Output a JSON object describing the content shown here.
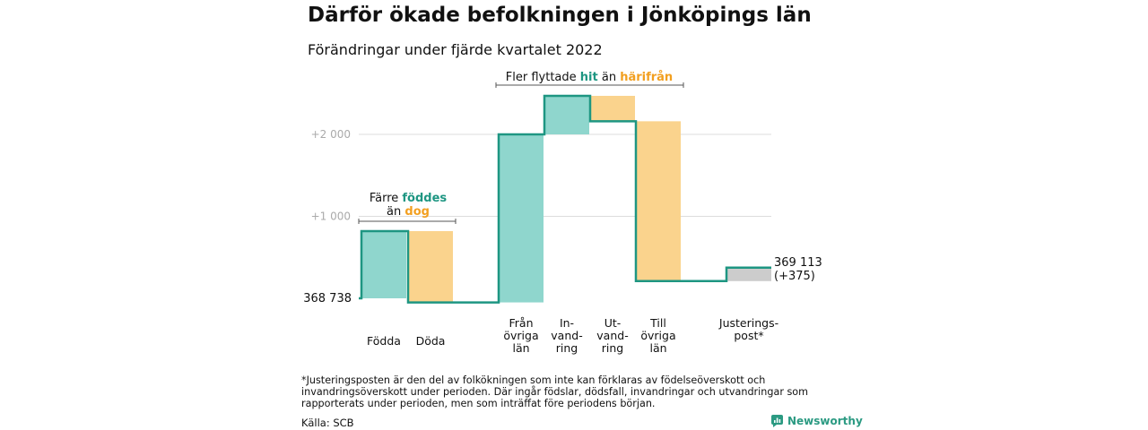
{
  "title": "Därför ökade befolkningen i Jönköpings län",
  "subtitle": "Förändringar under fjärde kvartalet 2022",
  "footnote": "*Justeringsposten är den del av folkökningen som inte kan förklaras av födelseöverskott och invandringsöverskott under perioden. Där ingår födslar, dödsfall, invandringar och utvandringar som rapporterats under perioden, men som inträffat före periodens början.",
  "source": "Källa: SCB",
  "brand": "Newsworthy",
  "colors": {
    "positive": "#8fd6cd",
    "negative": "#fad38d",
    "adjustment": "#cccccc",
    "step_line": "#1e9682",
    "grid": "#dddddd",
    "accent_teal": "#1e9682",
    "accent_orange": "#f29f1f"
  },
  "chart_data": {
    "type": "waterfall",
    "baseline": 0,
    "start_label": "368 738",
    "end_label": "369 113",
    "end_change_label": "(+375)",
    "y_ticks": [
      {
        "value": 2000,
        "label": "+2 000"
      },
      {
        "value": 1000,
        "label": "+1 000"
      }
    ],
    "steps": [
      {
        "category": [
          "Födda"
        ],
        "start": 0,
        "end": 820,
        "kind": "positive"
      },
      {
        "category": [
          "Döda"
        ],
        "start": 820,
        "end": -50,
        "kind": "negative"
      },
      {
        "category": [
          "Från",
          "övriga",
          "län"
        ],
        "start": -50,
        "end": 2000,
        "kind": "positive"
      },
      {
        "category": [
          "In-",
          "vand-",
          "ring"
        ],
        "start": 2000,
        "end": 2470,
        "kind": "positive"
      },
      {
        "category": [
          "Ut-",
          "vand-",
          "ring"
        ],
        "start": 2470,
        "end": 2160,
        "kind": "negative"
      },
      {
        "category": [
          "Till",
          "övriga",
          "län"
        ],
        "start": 2160,
        "end": 210,
        "kind": "negative"
      },
      {
        "category": [
          "Justerings-",
          "post*"
        ],
        "start": 210,
        "end": 375,
        "kind": "adjustment"
      }
    ],
    "annotations": [
      {
        "lines": [
          [
            {
              "text": "Färre "
            },
            {
              "text": "föddes",
              "color": "teal"
            }
          ],
          [
            {
              "text": "än "
            },
            {
              "text": "dog",
              "color": "orange"
            }
          ]
        ]
      },
      {
        "lines": [
          [
            {
              "text": "Fler flyttade "
            },
            {
              "text": "hit",
              "color": "teal"
            },
            {
              "text": " än "
            },
            {
              "text": "härifrån",
              "color": "orange"
            }
          ]
        ]
      }
    ]
  }
}
